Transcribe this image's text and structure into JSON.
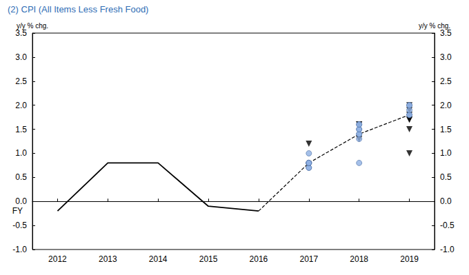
{
  "chart_data": {
    "type": "line",
    "title": "(2) CPI (All Items Less Fresh Food)",
    "xlabel": "FY",
    "ylabel": "y/y % chg.",
    "y2label": "y/y % chg.",
    "categories": [
      "2012",
      "2013",
      "2014",
      "2015",
      "2016",
      "2017",
      "2018",
      "2019"
    ],
    "ylim": [
      -1.0,
      3.5
    ],
    "yticks": [
      {
        "value": -1.0,
        "label": "-1.0"
      },
      {
        "value": -0.5,
        "label": "-0.5"
      },
      {
        "value": 0.0,
        "label": "0.0"
      },
      {
        "value": 0.5,
        "label": "0.5"
      },
      {
        "value": 1.0,
        "label": "1.0"
      },
      {
        "value": 1.5,
        "label": "1.5"
      },
      {
        "value": 2.0,
        "label": "2.0"
      },
      {
        "value": 2.5,
        "label": "2.5"
      },
      {
        "value": 3.0,
        "label": "3.0"
      },
      {
        "value": 3.5,
        "label": "3.5"
      }
    ],
    "y2lim": [
      -1.0,
      3.5
    ],
    "y2ticks": [
      {
        "value": -1.0,
        "label": "-1.0"
      },
      {
        "value": -0.5,
        "label": "-0.5"
      },
      {
        "value": 0.0,
        "label": "0.0"
      },
      {
        "value": 0.5,
        "label": "0.5"
      },
      {
        "value": 1.0,
        "label": "1.0"
      },
      {
        "value": 1.5,
        "label": "1.5"
      },
      {
        "value": 2.0,
        "label": "2.0"
      },
      {
        "value": 2.5,
        "label": "2.5"
      },
      {
        "value": 3.0,
        "label": "3.0"
      },
      {
        "value": 3.5,
        "label": "3.5"
      }
    ],
    "grid": false,
    "series": [
      {
        "type": "line",
        "color": "#000000",
        "line_style": "solid",
        "values": [
          -0.2,
          0.8,
          0.8,
          -0.1,
          -0.2,
          null,
          null,
          null
        ]
      },
      {
        "type": "line",
        "color": "#000000",
        "line_style": "dashed",
        "values": [
          null,
          null,
          null,
          null,
          -0.2,
          0.8,
          1.4,
          1.8
        ]
      },
      {
        "type": "scatter",
        "color": "#000000",
        "marker": "triangle-down",
        "x": [
          "2017",
          "2018",
          "2018",
          "2018",
          "2019",
          "2019",
          "2019",
          "2019",
          "2019",
          "2019",
          "2019"
        ],
        "values": [
          1.2,
          1.3,
          1.6,
          1.6,
          1.0,
          1.5,
          1.7,
          1.7,
          1.8,
          1.9,
          2.0
        ]
      },
      {
        "type": "scatter",
        "color": "#8fb0e3",
        "marker": "circle",
        "x": [
          "2017",
          "2017",
          "2017",
          "2017",
          "2017",
          "2017",
          "2017",
          "2017",
          "2018",
          "2018",
          "2018",
          "2018",
          "2018",
          "2018",
          "2018",
          "2018",
          "2019",
          "2019",
          "2019",
          "2019",
          "2019"
        ],
        "values": [
          0.7,
          0.7,
          0.8,
          0.8,
          0.8,
          0.8,
          0.8,
          1.0,
          0.8,
          1.3,
          1.4,
          1.4,
          1.5,
          1.5,
          1.6,
          1.6,
          1.8,
          1.8,
          1.9,
          2.0,
          2.0
        ]
      }
    ]
  }
}
